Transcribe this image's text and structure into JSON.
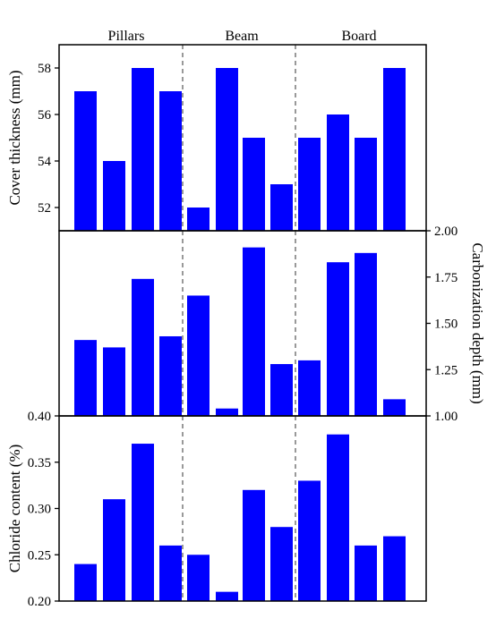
{
  "chart_data": {
    "type": "bar",
    "group_labels": [
      "Pillars",
      "Beam",
      "Board"
    ],
    "bars_per_group": 4,
    "bar_color": "#0000ff",
    "panels": [
      {
        "id": "cover",
        "ylabel": "Cover thickness (mm)",
        "yaxis_side": "left",
        "ylim": [
          51,
          59
        ],
        "yticks": [
          52,
          54,
          56,
          58
        ],
        "tick_labels": [
          "52",
          "54",
          "56",
          "58"
        ],
        "values": [
          57,
          54,
          58,
          57,
          52,
          58,
          55,
          53,
          55,
          56,
          55,
          58
        ]
      },
      {
        "id": "carbonization",
        "ylabel": "Carbonization depth (mm)",
        "yaxis_side": "right",
        "ylim": [
          1.0,
          2.0
        ],
        "yticks": [
          1.0,
          1.25,
          1.5,
          1.75,
          2.0
        ],
        "tick_labels": [
          "1.00",
          "1.25",
          "1.50",
          "1.75",
          "2.00"
        ],
        "values": [
          1.41,
          1.37,
          1.74,
          1.43,
          1.65,
          1.04,
          1.91,
          1.28,
          1.3,
          1.83,
          1.88,
          1.09
        ]
      },
      {
        "id": "chloride",
        "ylabel": "Chloride content (%)",
        "yaxis_side": "left",
        "ylim": [
          0.2,
          0.4
        ],
        "yticks": [
          0.2,
          0.25,
          0.3,
          0.35,
          0.4
        ],
        "tick_labels": [
          "0.20",
          "0.25",
          "0.30",
          "0.35",
          "0.40"
        ],
        "values": [
          0.24,
          0.31,
          0.37,
          0.26,
          0.25,
          0.21,
          0.32,
          0.28,
          0.33,
          0.38,
          0.26,
          0.27
        ]
      }
    ]
  }
}
